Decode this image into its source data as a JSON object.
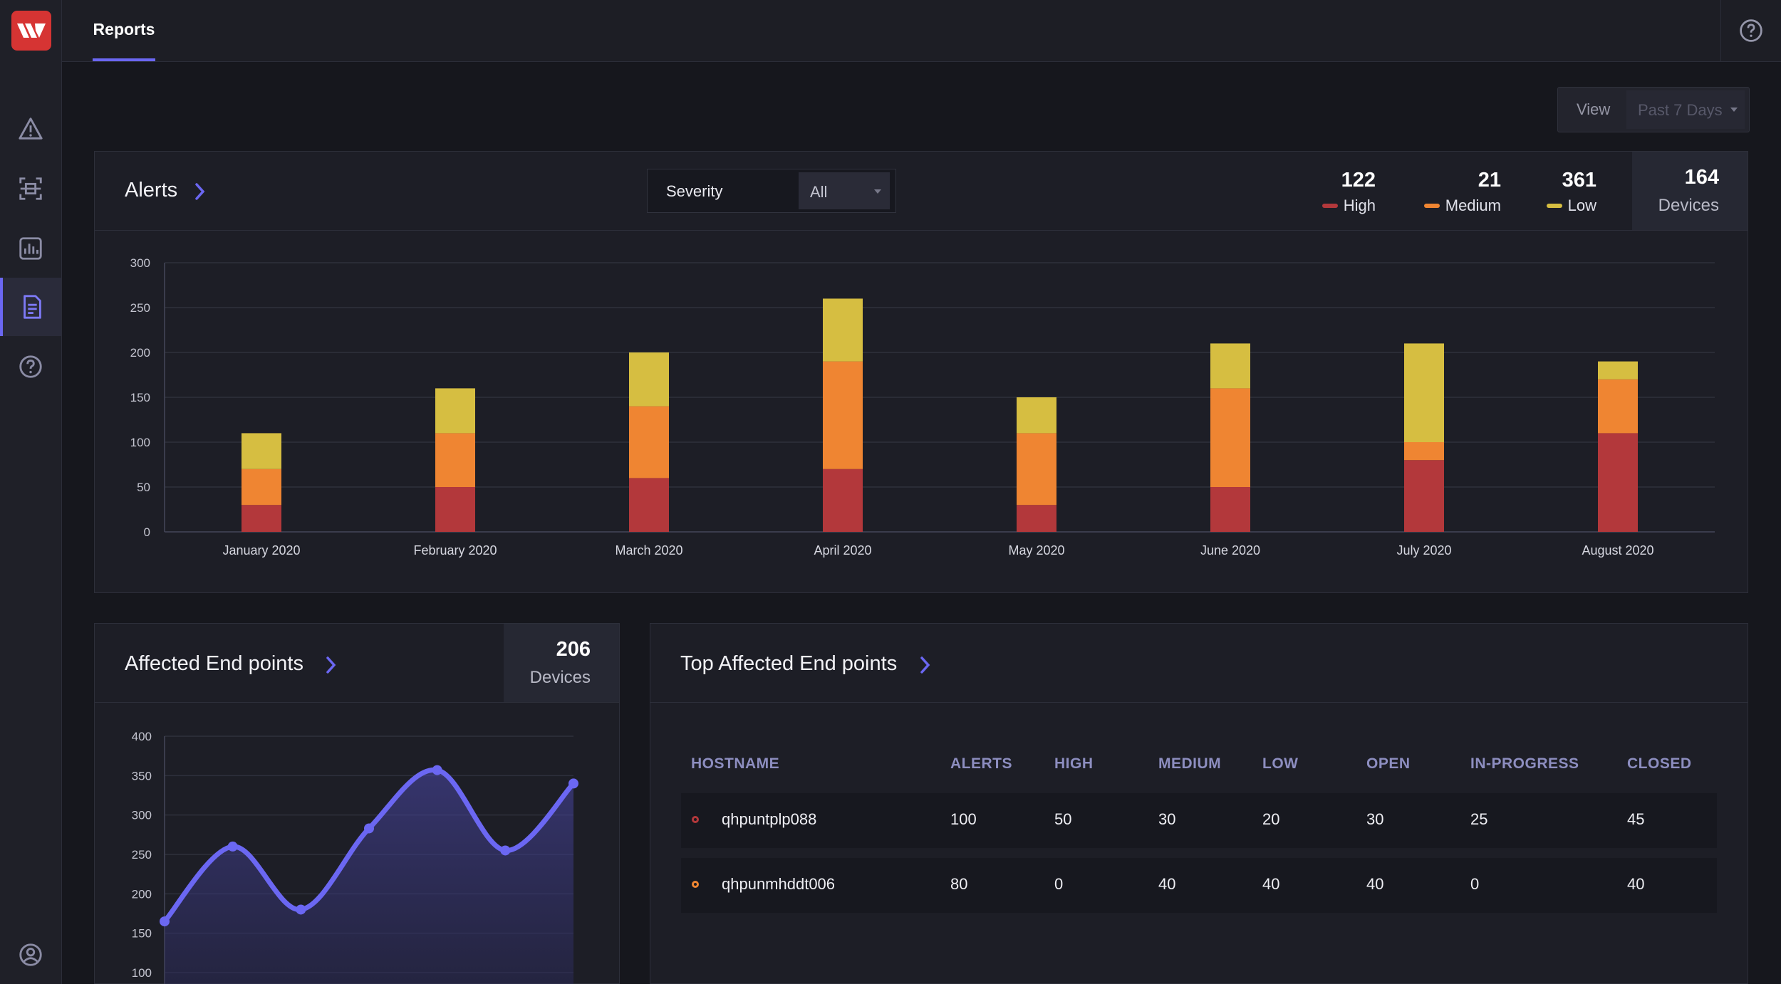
{
  "header": {
    "tab_reports": "Reports"
  },
  "colors": {
    "accent": "#6b67f2",
    "high": "#b3383b",
    "medium": "#ef8532",
    "low": "#d6be41",
    "logo": "#d63433"
  },
  "sidebar": {
    "icons": [
      "alert-icon",
      "scan-icon",
      "analytics-icon",
      "reports-icon",
      "help-icon",
      "user-icon"
    ]
  },
  "view_filter": {
    "label": "View",
    "value": "Past 7 Days"
  },
  "alerts_panel": {
    "title": "Alerts",
    "severity_label": "Severity",
    "severity_value": "All",
    "stats": [
      {
        "value": "122",
        "label": "High"
      },
      {
        "value": "21",
        "label": "Medium"
      },
      {
        "value": "361",
        "label": "Low"
      }
    ],
    "devices": {
      "value": "164",
      "label": "Devices"
    }
  },
  "endpoints_panel": {
    "title": "Affected End points",
    "devices": {
      "value": "206",
      "label": "Devices"
    }
  },
  "top_endpoints": {
    "title": "Top Affected End points",
    "columns": [
      "HOSTNAME",
      "ALERTS",
      "HIGH",
      "MEDIUM",
      "LOW",
      "OPEN",
      "IN-PROGRESS",
      "CLOSED"
    ],
    "rows": [
      {
        "hostname": "qhpuntplp088",
        "alerts": "100",
        "high": "50",
        "medium": "30",
        "low": "20",
        "open": "30",
        "in_progress": "25",
        "closed": "45",
        "status": "high"
      },
      {
        "hostname": "qhpunmhddt006",
        "alerts": "80",
        "high": "0",
        "medium": "40",
        "low": "40",
        "open": "40",
        "in_progress": "0",
        "closed": "40",
        "status": "medium"
      }
    ]
  },
  "chart_data": [
    {
      "type": "bar",
      "stacked": true,
      "categories": [
        "January 2020",
        "February 2020",
        "March 2020",
        "April 2020",
        "May 2020",
        "June 2020",
        "July 2020",
        "August 2020"
      ],
      "series": [
        {
          "name": "High",
          "values": [
            30,
            50,
            60,
            70,
            30,
            50,
            80,
            110
          ]
        },
        {
          "name": "Medium",
          "values": [
            40,
            60,
            80,
            120,
            80,
            110,
            20,
            60
          ]
        },
        {
          "name": "Low",
          "values": [
            40,
            50,
            60,
            70,
            40,
            50,
            110,
            20
          ]
        }
      ],
      "yticks": [
        0,
        50,
        100,
        150,
        200,
        250,
        300
      ],
      "ylim": [
        0,
        300
      ],
      "grid": true
    },
    {
      "type": "area",
      "values": [
        165,
        260,
        180,
        283,
        357,
        255,
        340
      ],
      "yticks": [
        100,
        150,
        200,
        250,
        300,
        350,
        400
      ],
      "ylim": [
        100,
        400
      ],
      "grid": true
    }
  ]
}
